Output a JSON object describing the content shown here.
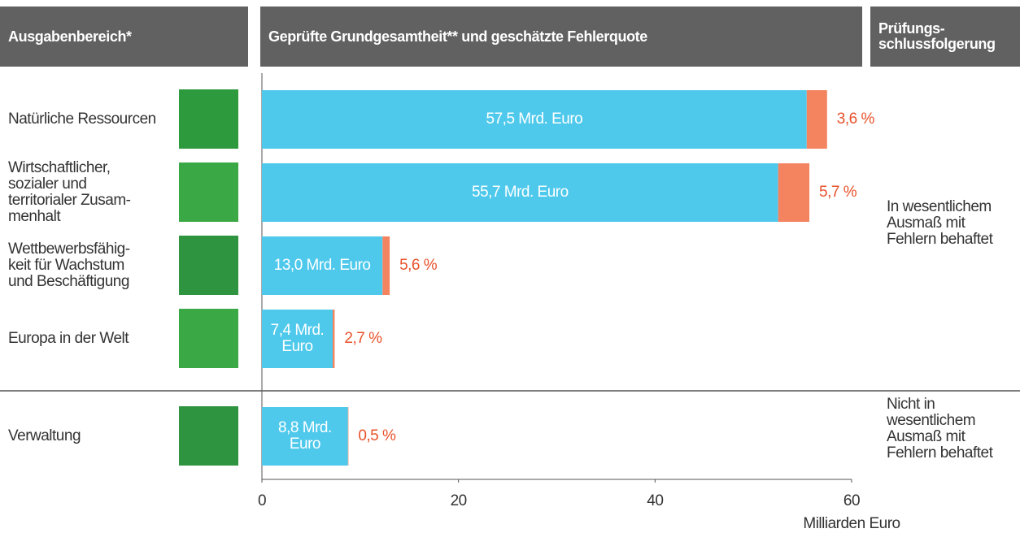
{
  "chart_data": {
    "type": "bar",
    "column_headers": [
      "Ausgabenbereich*",
      "Geprüfte Grundgesamtheit** und geschätzte Fehlerquote",
      "Prüfungs-\nschlussfolgerung"
    ],
    "categories": [
      "Natürliche Ressourcen",
      "Wirtschaftlicher,\nsozialer und\nterritorialer Zusam-\nmenhalt",
      "Wettbewerbsfähig-\nkeit für Wachstum\nund Beschäftigung",
      "Europa in der Welt",
      "Verwaltung"
    ],
    "values": [
      57.5,
      55.7,
      13.0,
      7.4,
      8.8
    ],
    "value_labels": [
      "57,5 Mrd. Euro",
      "55,7 Mrd. Euro",
      "13,0 Mrd. Euro",
      "7,4 Mrd.\nEuro",
      "8,8 Mrd.\nEuro"
    ],
    "rates": [
      3.6,
      5.7,
      5.6,
      2.7,
      0.5
    ],
    "rate_labels": [
      "3,6 %",
      "5,7 %",
      "5,6 %",
      "2,7 %",
      "0,5 %"
    ],
    "conclusions": [
      "In wesentlichem\nAusmaß mit\nFehlern behaftet",
      "Nicht in\nwesentlichem\nAusmaß mit\nFehlern behaftet"
    ],
    "color": "#4ec9ec",
    "rate_color": "#f4835f",
    "xlim": [
      0,
      60
    ],
    "xticks": [
      0,
      20,
      40,
      60
    ],
    "xlabel": "Milliarden Euro"
  }
}
